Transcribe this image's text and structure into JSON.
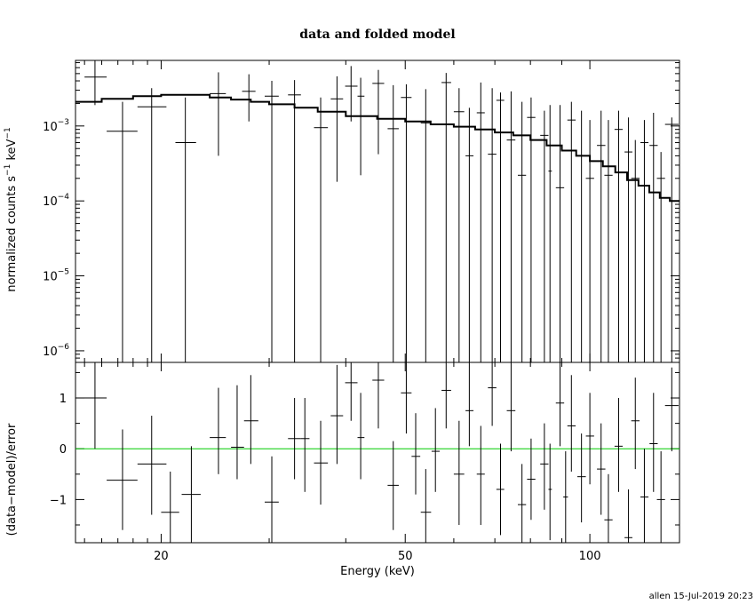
{
  "chart_data": [
    {
      "type": "scatter",
      "title": "data and folded model",
      "xlabel": "Energy (keV)",
      "ylabel": "normalized counts s",
      "ylabel_unit": "keV",
      "ylabel_exp": "−1",
      "xscale": "log",
      "yscale": "log",
      "xlim": [
        14.5,
        140
      ],
      "ylim": [
        7e-07,
        0.0075
      ],
      "x_ticks": [
        "20",
        "50",
        "100"
      ],
      "x_tick_values": [
        20,
        50,
        100
      ],
      "y_ticks": [
        {
          "mantissa": "10",
          "exp": "−3",
          "value": 0.001
        },
        {
          "mantissa": "10",
          "exp": "−4",
          "value": 0.0001
        },
        {
          "mantissa": "10",
          "exp": "−5",
          "value": 1e-05
        },
        {
          "mantissa": "10",
          "exp": "−6",
          "value": 1e-06
        }
      ],
      "data": [
        {
          "x": 15.6,
          "xerr": [
            15.0,
            16.3
          ],
          "y": 0.0045,
          "ylo": 0.0019,
          "yhi": 0.0075
        },
        {
          "x": 17.3,
          "xerr": [
            16.3,
            18.3
          ],
          "y": 0.00085,
          "ylo": 7e-07,
          "yhi": 0.0021
        },
        {
          "x": 19.3,
          "xerr": [
            18.3,
            20.4
          ],
          "y": 0.0018,
          "ylo": 7e-07,
          "yhi": 0.0032
        },
        {
          "x": 21.9,
          "xerr": [
            21.1,
            22.8
          ],
          "y": 0.0006,
          "ylo": 7e-07,
          "yhi": 0.0024
        },
        {
          "x": 24.8,
          "xerr": [
            24.0,
            25.5
          ],
          "y": 0.0027,
          "ylo": 0.0004,
          "yhi": 0.0052
        },
        {
          "x": 27.8,
          "xerr": [
            27.1,
            28.5
          ],
          "y": 0.0029,
          "ylo": 0.00115,
          "yhi": 0.0049
        },
        {
          "x": 30.3,
          "xerr": [
            29.5,
            31.1
          ],
          "y": 0.0025,
          "ylo": 7e-07,
          "yhi": 0.004
        },
        {
          "x": 33.0,
          "xerr": [
            32.2,
            33.8
          ],
          "y": 0.0026,
          "ylo": 7e-07,
          "yhi": 0.0041
        },
        {
          "x": 36.4,
          "xerr": [
            35.5,
            37.4
          ],
          "y": 0.00095,
          "ylo": 7e-07,
          "yhi": 0.0024
        },
        {
          "x": 38.7,
          "xerr": [
            37.8,
            39.6
          ],
          "y": 0.0023,
          "ylo": 0.00018,
          "yhi": 0.0046
        },
        {
          "x": 40.8,
          "xerr": [
            39.9,
            41.8
          ],
          "y": 0.0034,
          "ylo": 0.00115,
          "yhi": 0.0063
        },
        {
          "x": 42.3,
          "xerr": [
            41.8,
            42.9
          ],
          "y": 0.0025,
          "ylo": 0.00022,
          "yhi": 0.0044
        },
        {
          "x": 45.2,
          "xerr": [
            44.2,
            46.2
          ],
          "y": 0.0037,
          "ylo": 0.00042,
          "yhi": 0.0056
        },
        {
          "x": 47.8,
          "xerr": [
            46.8,
            48.8
          ],
          "y": 0.00092,
          "ylo": 7e-07,
          "yhi": 0.0035
        },
        {
          "x": 50.2,
          "xerr": [
            49.2,
            51.2
          ],
          "y": 0.0024,
          "ylo": 7e-07,
          "yhi": 0.0036
        },
        {
          "x": 54.0,
          "xerr": [
            53.0,
            55.1
          ],
          "y": 0.0011,
          "ylo": 7e-07,
          "yhi": 0.0031
        },
        {
          "x": 58.3,
          "xerr": [
            57.3,
            59.4
          ],
          "y": 0.0038,
          "ylo": 7e-07,
          "yhi": 0.0051
        },
        {
          "x": 61.2,
          "xerr": [
            60.0,
            62.4
          ],
          "y": 0.00155,
          "ylo": 7e-07,
          "yhi": 0.0032
        },
        {
          "x": 63.6,
          "xerr": [
            62.7,
            64.6
          ],
          "y": 0.0004,
          "ylo": 7e-07,
          "yhi": 0.00175
        },
        {
          "x": 66.4,
          "xerr": [
            65.4,
            67.4
          ],
          "y": 0.0015,
          "ylo": 7e-07,
          "yhi": 0.0038
        },
        {
          "x": 69.3,
          "xerr": [
            68.2,
            70.4
          ],
          "y": 0.00042,
          "ylo": 7e-07,
          "yhi": 0.0032
        },
        {
          "x": 71.5,
          "xerr": [
            70.4,
            72.5
          ],
          "y": 0.0022,
          "ylo": 7e-07,
          "yhi": 0.0028
        },
        {
          "x": 74.4,
          "xerr": [
            73.2,
            75.6
          ],
          "y": 0.00065,
          "ylo": 7e-07,
          "yhi": 0.0029
        },
        {
          "x": 77.5,
          "xerr": [
            76.3,
            78.7
          ],
          "y": 0.00022,
          "ylo": 7e-07,
          "yhi": 0.0021
        },
        {
          "x": 80.2,
          "xerr": [
            79.0,
            81.5
          ],
          "y": 0.0013,
          "ylo": 7e-07,
          "yhi": 0.0024
        },
        {
          "x": 84.3,
          "xerr": [
            83.0,
            85.6
          ],
          "y": 0.00075,
          "ylo": 7e-07,
          "yhi": 0.0016
        },
        {
          "x": 86.1,
          "xerr": [
            85.6,
            86.7
          ],
          "y": 0.00025,
          "ylo": 7e-07,
          "yhi": 0.0019
        },
        {
          "x": 89.4,
          "xerr": [
            88.0,
            90.8
          ],
          "y": 0.00015,
          "ylo": 7e-07,
          "yhi": 0.0019
        },
        {
          "x": 93.3,
          "xerr": [
            91.9,
            94.8
          ],
          "y": 0.0012,
          "ylo": 7e-07,
          "yhi": 0.0021
        },
        {
          "x": 96.9,
          "xerr": [
            95.4,
            98.5
          ],
          "y": 0.0004,
          "ylo": 7e-07,
          "yhi": 0.0016
        },
        {
          "x": 100.0,
          "xerr": [
            98.5,
            101.6
          ],
          "y": 0.0002,
          "ylo": 7e-07,
          "yhi": 0.0012
        },
        {
          "x": 104.3,
          "xerr": [
            102.7,
            106.0
          ],
          "y": 0.00055,
          "ylo": 7e-07,
          "yhi": 0.0016
        },
        {
          "x": 107.2,
          "xerr": [
            105.6,
            108.9
          ],
          "y": 0.00022,
          "ylo": 7e-07,
          "yhi": 0.0012
        },
        {
          "x": 111.4,
          "xerr": [
            109.7,
            113.1
          ],
          "y": 0.0009,
          "ylo": 7e-07,
          "yhi": 0.0016
        },
        {
          "x": 115.6,
          "xerr": [
            113.9,
            117.3
          ],
          "y": 0.00045,
          "ylo": 7e-07,
          "yhi": 0.0013
        },
        {
          "x": 118.6,
          "xerr": [
            116.8,
            120.5
          ],
          "y": 0.0002,
          "ylo": 7e-07,
          "yhi": 0.00065
        },
        {
          "x": 122.7,
          "xerr": [
            120.9,
            124.6
          ],
          "y": 0.0006,
          "ylo": 7e-07,
          "yhi": 0.0012
        },
        {
          "x": 127.0,
          "xerr": [
            125.1,
            129.0
          ],
          "y": 0.00055,
          "ylo": 7e-07,
          "yhi": 0.0015
        },
        {
          "x": 130.6,
          "xerr": [
            128.6,
            132.6
          ],
          "y": 0.0002,
          "ylo": 7e-07,
          "yhi": 0.00045
        },
        {
          "x": 136.0,
          "xerr": [
            132.6,
            139.5
          ],
          "y": 0.00105,
          "ylo": 7e-07,
          "yhi": 0.0013
        }
      ],
      "model": {
        "x": [
          14.5,
          16,
          18,
          20,
          22,
          24,
          26,
          28,
          30,
          33,
          36,
          40,
          45,
          50,
          55,
          60,
          65,
          70,
          75,
          80,
          85,
          90,
          95,
          100,
          105,
          110,
          115,
          120,
          125,
          130,
          135,
          140
        ],
        "y": [
          0.0021,
          0.0023,
          0.0025,
          0.0026,
          0.0026,
          0.0024,
          0.00225,
          0.0021,
          0.00195,
          0.00175,
          0.00155,
          0.00135,
          0.00125,
          0.00115,
          0.00105,
          0.00098,
          0.0009,
          0.00082,
          0.00075,
          0.00065,
          0.00055,
          0.00047,
          0.0004,
          0.00034,
          0.00029,
          0.00024,
          0.00019,
          0.00016,
          0.00013,
          0.00011,
          0.0001,
          8.5e-05
        ],
        "color": "#000000"
      }
    },
    {
      "type": "scatter",
      "xlabel": "Energy (keV)",
      "ylabel": "(data−model)/error",
      "xscale": "log",
      "xlim": [
        14.5,
        140
      ],
      "ylim": [
        -1.85,
        1.7
      ],
      "x_ticks": [
        "20",
        "50",
        "100"
      ],
      "x_tick_values": [
        20,
        50,
        100
      ],
      "y_ticks": [
        "1",
        "0",
        "−1"
      ],
      "y_tick_values": [
        1,
        0,
        -1
      ],
      "reference_line": {
        "y": 0,
        "color": "#00cc00"
      },
      "data": [
        {
          "x": 15.6,
          "xerr": [
            14.5,
            16.3
          ],
          "y": 1.0,
          "ylo": 0.0,
          "yhi": 1.7
        },
        {
          "x": 17.3,
          "xerr": [
            16.3,
            18.3
          ],
          "y": -0.62,
          "ylo": -1.6,
          "yhi": 0.38
        },
        {
          "x": 19.3,
          "xerr": [
            18.3,
            20.4
          ],
          "y": -0.3,
          "ylo": -1.3,
          "yhi": 0.65
        },
        {
          "x": 20.7,
          "xerr": [
            20.0,
            21.4
          ],
          "y": -1.25,
          "ylo": -1.85,
          "yhi": -0.45
        },
        {
          "x": 22.4,
          "xerr": [
            21.6,
            23.2
          ],
          "y": -0.9,
          "ylo": -1.85,
          "yhi": 0.05
        },
        {
          "x": 24.8,
          "xerr": [
            24.0,
            25.5
          ],
          "y": 0.22,
          "ylo": -0.5,
          "yhi": 1.2
        },
        {
          "x": 26.6,
          "xerr": [
            26.0,
            27.3
          ],
          "y": 0.03,
          "ylo": -0.6,
          "yhi": 1.25
        },
        {
          "x": 28.0,
          "xerr": [
            27.3,
            28.8
          ],
          "y": 0.55,
          "ylo": -0.3,
          "yhi": 1.45
        },
        {
          "x": 30.3,
          "xerr": [
            29.5,
            31.1
          ],
          "y": -1.05,
          "ylo": -1.85,
          "yhi": -0.15
        },
        {
          "x": 33.0,
          "xerr": [
            32.2,
            33.8
          ],
          "y": 0.2,
          "ylo": -0.6,
          "yhi": 1.0
        },
        {
          "x": 34.3,
          "xerr": [
            33.8,
            34.9
          ],
          "y": 0.2,
          "ylo": -0.85,
          "yhi": 1.0
        },
        {
          "x": 36.4,
          "xerr": [
            35.5,
            37.4
          ],
          "y": -0.28,
          "ylo": -1.1,
          "yhi": 0.55
        },
        {
          "x": 38.7,
          "xerr": [
            37.8,
            39.6
          ],
          "y": 0.65,
          "ylo": -0.3,
          "yhi": 1.65
        },
        {
          "x": 40.8,
          "xerr": [
            39.9,
            41.8
          ],
          "y": 1.3,
          "ylo": 0.55,
          "yhi": 1.7
        },
        {
          "x": 42.3,
          "xerr": [
            41.8,
            42.9
          ],
          "y": 0.22,
          "ylo": -0.6,
          "yhi": 1.1
        },
        {
          "x": 45.2,
          "xerr": [
            44.2,
            46.2
          ],
          "y": 1.35,
          "ylo": 0.4,
          "yhi": 1.7
        },
        {
          "x": 47.8,
          "xerr": [
            46.8,
            48.8
          ],
          "y": -0.72,
          "ylo": -1.6,
          "yhi": 0.15
        },
        {
          "x": 50.2,
          "xerr": [
            49.2,
            51.2
          ],
          "y": 1.1,
          "ylo": 0.3,
          "yhi": 1.7
        },
        {
          "x": 52.0,
          "xerr": [
            51.2,
            52.9
          ],
          "y": -0.15,
          "ylo": -0.9,
          "yhi": 0.7
        },
        {
          "x": 54.0,
          "xerr": [
            53.0,
            55.1
          ],
          "y": -1.25,
          "ylo": -1.85,
          "yhi": -0.4
        },
        {
          "x": 56.0,
          "xerr": [
            55.2,
            56.9
          ],
          "y": -0.05,
          "ylo": -0.85,
          "yhi": 0.8
        },
        {
          "x": 58.3,
          "xerr": [
            57.3,
            59.4
          ],
          "y": 1.15,
          "ylo": 0.4,
          "yhi": 1.7
        },
        {
          "x": 61.2,
          "xerr": [
            60.0,
            62.4
          ],
          "y": -0.5,
          "ylo": -1.5,
          "yhi": 0.55
        },
        {
          "x": 63.6,
          "xerr": [
            62.7,
            64.6
          ],
          "y": 0.75,
          "ylo": 0.05,
          "yhi": 1.7
        },
        {
          "x": 66.4,
          "xerr": [
            65.4,
            67.4
          ],
          "y": -0.5,
          "ylo": -1.5,
          "yhi": 0.45
        },
        {
          "x": 69.3,
          "xerr": [
            68.2,
            70.4
          ],
          "y": 1.2,
          "ylo": 0.45,
          "yhi": 1.7
        },
        {
          "x": 71.5,
          "xerr": [
            70.4,
            72.5
          ],
          "y": -0.8,
          "ylo": -1.7,
          "yhi": 0.1
        },
        {
          "x": 74.4,
          "xerr": [
            73.2,
            75.6
          ],
          "y": 0.75,
          "ylo": -0.05,
          "yhi": 1.7
        },
        {
          "x": 77.5,
          "xerr": [
            76.3,
            78.7
          ],
          "y": -1.1,
          "ylo": -1.85,
          "yhi": -0.3
        },
        {
          "x": 80.2,
          "xerr": [
            79.0,
            81.5
          ],
          "y": -0.6,
          "ylo": -1.4,
          "yhi": 0.2
        },
        {
          "x": 84.3,
          "xerr": [
            83.0,
            85.6
          ],
          "y": -0.3,
          "ylo": -1.2,
          "yhi": 0.5
        },
        {
          "x": 86.1,
          "xerr": [
            85.6,
            86.7
          ],
          "y": -0.8,
          "ylo": -1.8,
          "yhi": 0.1
        },
        {
          "x": 89.4,
          "xerr": [
            88.0,
            90.8
          ],
          "y": 0.9,
          "ylo": 0.05,
          "yhi": 1.7
        },
        {
          "x": 91.3,
          "xerr": [
            90.5,
            92.1
          ],
          "y": -0.95,
          "ylo": -1.85,
          "yhi": -0.05
        },
        {
          "x": 93.3,
          "xerr": [
            91.9,
            94.8
          ],
          "y": 0.45,
          "ylo": -0.45,
          "yhi": 1.45
        },
        {
          "x": 96.9,
          "xerr": [
            95.4,
            98.5
          ],
          "y": -0.55,
          "ylo": -1.45,
          "yhi": 0.3
        },
        {
          "x": 100.0,
          "xerr": [
            98.5,
            101.6
          ],
          "y": 0.25,
          "ylo": -0.7,
          "yhi": 1.1
        },
        {
          "x": 104.3,
          "xerr": [
            102.7,
            106.0
          ],
          "y": -0.4,
          "ylo": -1.3,
          "yhi": 0.5
        },
        {
          "x": 107.2,
          "xerr": [
            105.6,
            108.9
          ],
          "y": -1.4,
          "ylo": -1.85,
          "yhi": -0.5
        },
        {
          "x": 111.4,
          "xerr": [
            109.7,
            113.1
          ],
          "y": 0.05,
          "ylo": -0.85,
          "yhi": 1.0
        },
        {
          "x": 115.6,
          "xerr": [
            113.9,
            117.3
          ],
          "y": -1.75,
          "ylo": -1.85,
          "yhi": -0.8
        },
        {
          "x": 118.6,
          "xerr": [
            116.8,
            120.5
          ],
          "y": 0.55,
          "ylo": -0.4,
          "yhi": 1.4
        },
        {
          "x": 122.7,
          "xerr": [
            120.9,
            124.6
          ],
          "y": -0.95,
          "ylo": -1.85,
          "yhi": 0.0
        },
        {
          "x": 127.0,
          "xerr": [
            125.1,
            129.0
          ],
          "y": 0.1,
          "ylo": -0.85,
          "yhi": 1.1
        },
        {
          "x": 130.6,
          "xerr": [
            128.6,
            132.6
          ],
          "y": -1.0,
          "ylo": -1.85,
          "yhi": -0.05
        },
        {
          "x": 136.0,
          "xerr": [
            132.6,
            139.5
          ],
          "y": 0.85,
          "ylo": -0.05,
          "yhi": 1.6
        }
      ]
    }
  ],
  "footer": "allen 15-Jul-2019 20:23"
}
